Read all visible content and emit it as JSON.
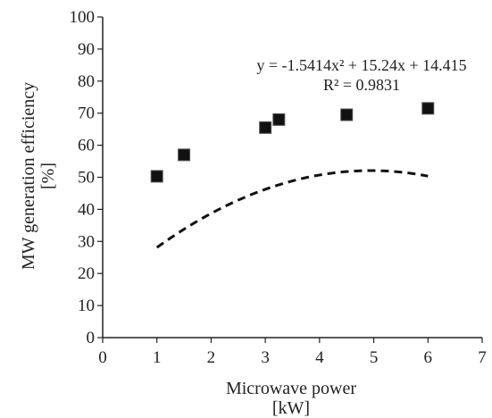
{
  "chart_data": {
    "type": "scatter",
    "x": [
      1,
      1.5,
      3,
      3.25,
      4.5,
      6
    ],
    "y": [
      50.3,
      57,
      65.5,
      68,
      69.5,
      71.5
    ],
    "xlim": [
      0,
      7
    ],
    "ylim": [
      0,
      100
    ],
    "xticks": [
      "0",
      "1",
      "2",
      "3",
      "4",
      "5",
      "6",
      "7"
    ],
    "yticks": [
      "0",
      "10",
      "20",
      "30",
      "40",
      "50",
      "60",
      "70",
      "80",
      "90",
      "100"
    ],
    "xlabel": [
      "Microwave power",
      "[kW]"
    ],
    "ylabel": [
      "MW generation efficiency",
      "[%]"
    ],
    "trendline": {
      "type": "polynomial",
      "coefficients": [
        -1.5414,
        15.24,
        14.415
      ],
      "x_range": [
        1,
        6
      ],
      "style": "dashed",
      "equation_text": "y = -1.5414x² + 15.24x + 14.415",
      "r2_text": "R² = 0.9831"
    },
    "grid": false,
    "legend": "none",
    "colors": {
      "marker": "#111111",
      "trendline": "#111111",
      "axis": "#222222"
    }
  }
}
